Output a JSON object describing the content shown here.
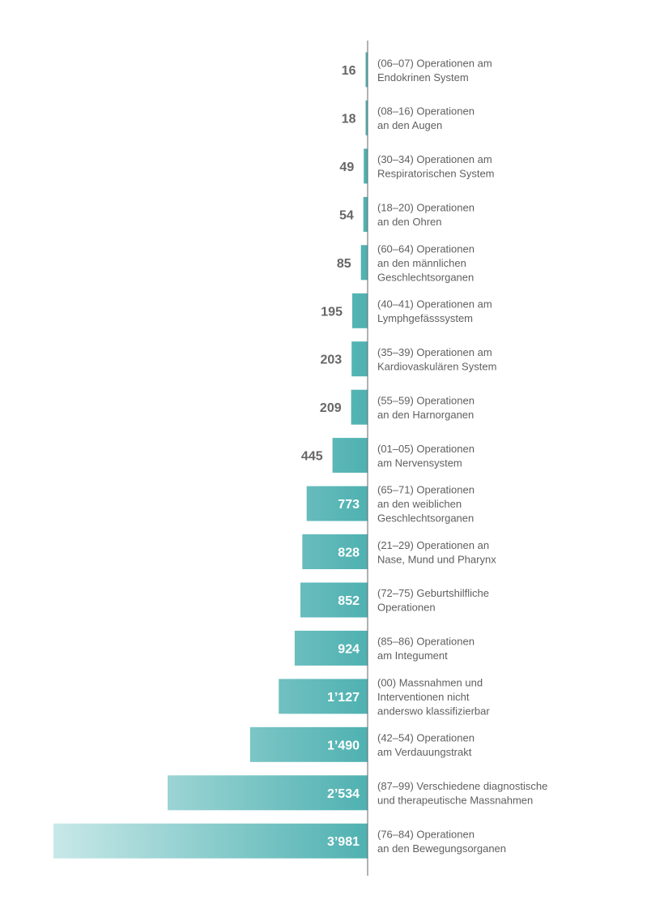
{
  "chart_data": {
    "type": "bar",
    "orientation": "horizontal",
    "colors": {
      "bar_start": "#c8e8e8",
      "bar_end": "#4fb1b1",
      "axis": "#666666",
      "text": "#5f5f5f",
      "value_outside": "#666666",
      "value_inside": "#ffffff"
    },
    "categories": [
      [
        "(06–07) Operationen am",
        "Endokrinen System"
      ],
      [
        "(08–16) Operationen",
        "an den Augen"
      ],
      [
        "(30–34) Operationen am",
        "Respiratorischen System"
      ],
      [
        "(18–20) Operationen",
        "an den Ohren"
      ],
      [
        "(60–64) Operationen",
        "an den männlichen",
        "Geschlechtsorganen"
      ],
      [
        "(40–41) Operationen am",
        "Lymphgefässsystem"
      ],
      [
        "(35–39) Operationen am",
        "Kardiovaskulären System"
      ],
      [
        "(55–59) Operationen",
        "an den Harnorganen"
      ],
      [
        "(01–05) Operationen",
        "am Nervensystem"
      ],
      [
        "(65–71) Operationen",
        "an den weiblichen",
        "Geschlechtsorganen"
      ],
      [
        "(21–29) Operationen an",
        "Nase, Mund und Pharynx"
      ],
      [
        "(72–75) Geburtshilfliche",
        "Operationen"
      ],
      [
        "(85–86) Operationen",
        "am Integument"
      ],
      [
        "(00) Massnahmen und",
        "Interventionen nicht",
        "anderswo klassifizierbar"
      ],
      [
        "(42–54) Operationen",
        "am Verdauungstrakt"
      ],
      [
        "(87–99) Verschiedene diagnostische",
        "und therapeutische Massnahmen"
      ],
      [
        "(76–84) Operationen",
        "an den Bewegungsorganen"
      ]
    ],
    "values": [
      16,
      18,
      49,
      54,
      85,
      195,
      203,
      209,
      445,
      773,
      828,
      852,
      924,
      1127,
      1490,
      2534,
      3981
    ],
    "value_labels": [
      "16",
      "18",
      "49",
      "54",
      "85",
      "195",
      "203",
      "209",
      "445",
      "773",
      "828",
      "852",
      "924",
      "1’127",
      "1’490",
      "2’534",
      "3’981"
    ]
  }
}
